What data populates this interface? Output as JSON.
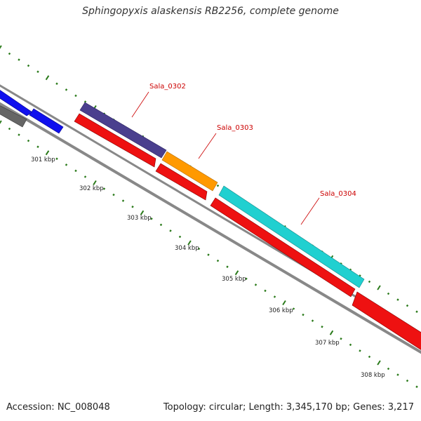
{
  "title": "Sphingopyxis alaskensis RB2256, complete genome",
  "footer": {
    "accession": "Accession: NC_008048",
    "summary": "Topology: circular; Length: 3,345,170 bp; Genes: 3,217"
  },
  "gene_labels": [
    "Sala_0302",
    "Sala_0303",
    "Sala_0304"
  ],
  "kbp_labels": [
    "301 kbp",
    "302 kbp",
    "303 kbp",
    "304 kbp",
    "305 kbp",
    "306 kbp",
    "307 kbp",
    "308 kbp"
  ],
  "colors": {
    "backbone": "#888888",
    "forward_strand_blue": "#1010ee",
    "gray_feature": "#666666",
    "sala_0302": "#4a3f8e",
    "sala_0303": "#ff9900",
    "sala_0304": "#20d0d0",
    "reverse_strand_red": "#ee1111",
    "ticks": "#2a7a1a",
    "gene_label": "#cc0000"
  }
}
